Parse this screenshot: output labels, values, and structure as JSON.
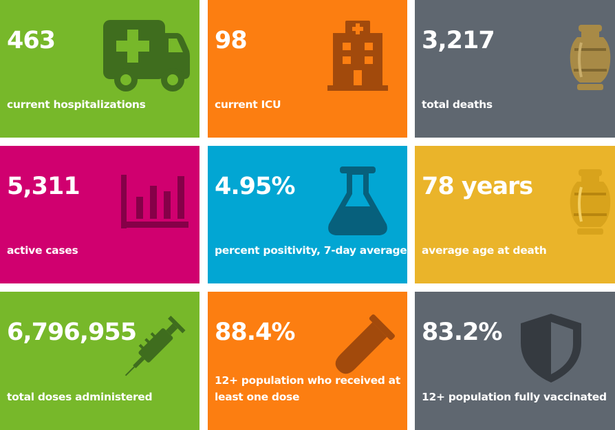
{
  "colors": {
    "green": "#77b82a",
    "orange": "#fc7e11",
    "gray": "#5f6770",
    "magenta": "#d0006f",
    "cyan": "#02a6d3",
    "gold": "#eab42a"
  },
  "tiles": [
    {
      "value": "463",
      "label": "current hospitalizations",
      "icon": "ambulance-icon"
    },
    {
      "value": "98",
      "label": "current ICU",
      "icon": "hospital-icon"
    },
    {
      "value": "3,217",
      "label": "total deaths",
      "icon": "urn-icon"
    },
    {
      "value": "5,311",
      "label": "active cases",
      "icon": "bar-chart-icon"
    },
    {
      "value": "4.95%",
      "label": "percent positivity, 7-day average",
      "icon": "flask-icon"
    },
    {
      "value": "78 years",
      "label": "average age at death",
      "icon": "urn-icon"
    },
    {
      "value": "6,796,955",
      "label": "total doses administered",
      "icon": "syringe-icon"
    },
    {
      "value": "88.4%",
      "label_line1": "12+ population who received at",
      "label_line2": "least one dose",
      "icon": "test-tube-icon"
    },
    {
      "value": "83.2%",
      "label": "12+ population fully vaccinated",
      "icon": "shield-icon"
    }
  ]
}
